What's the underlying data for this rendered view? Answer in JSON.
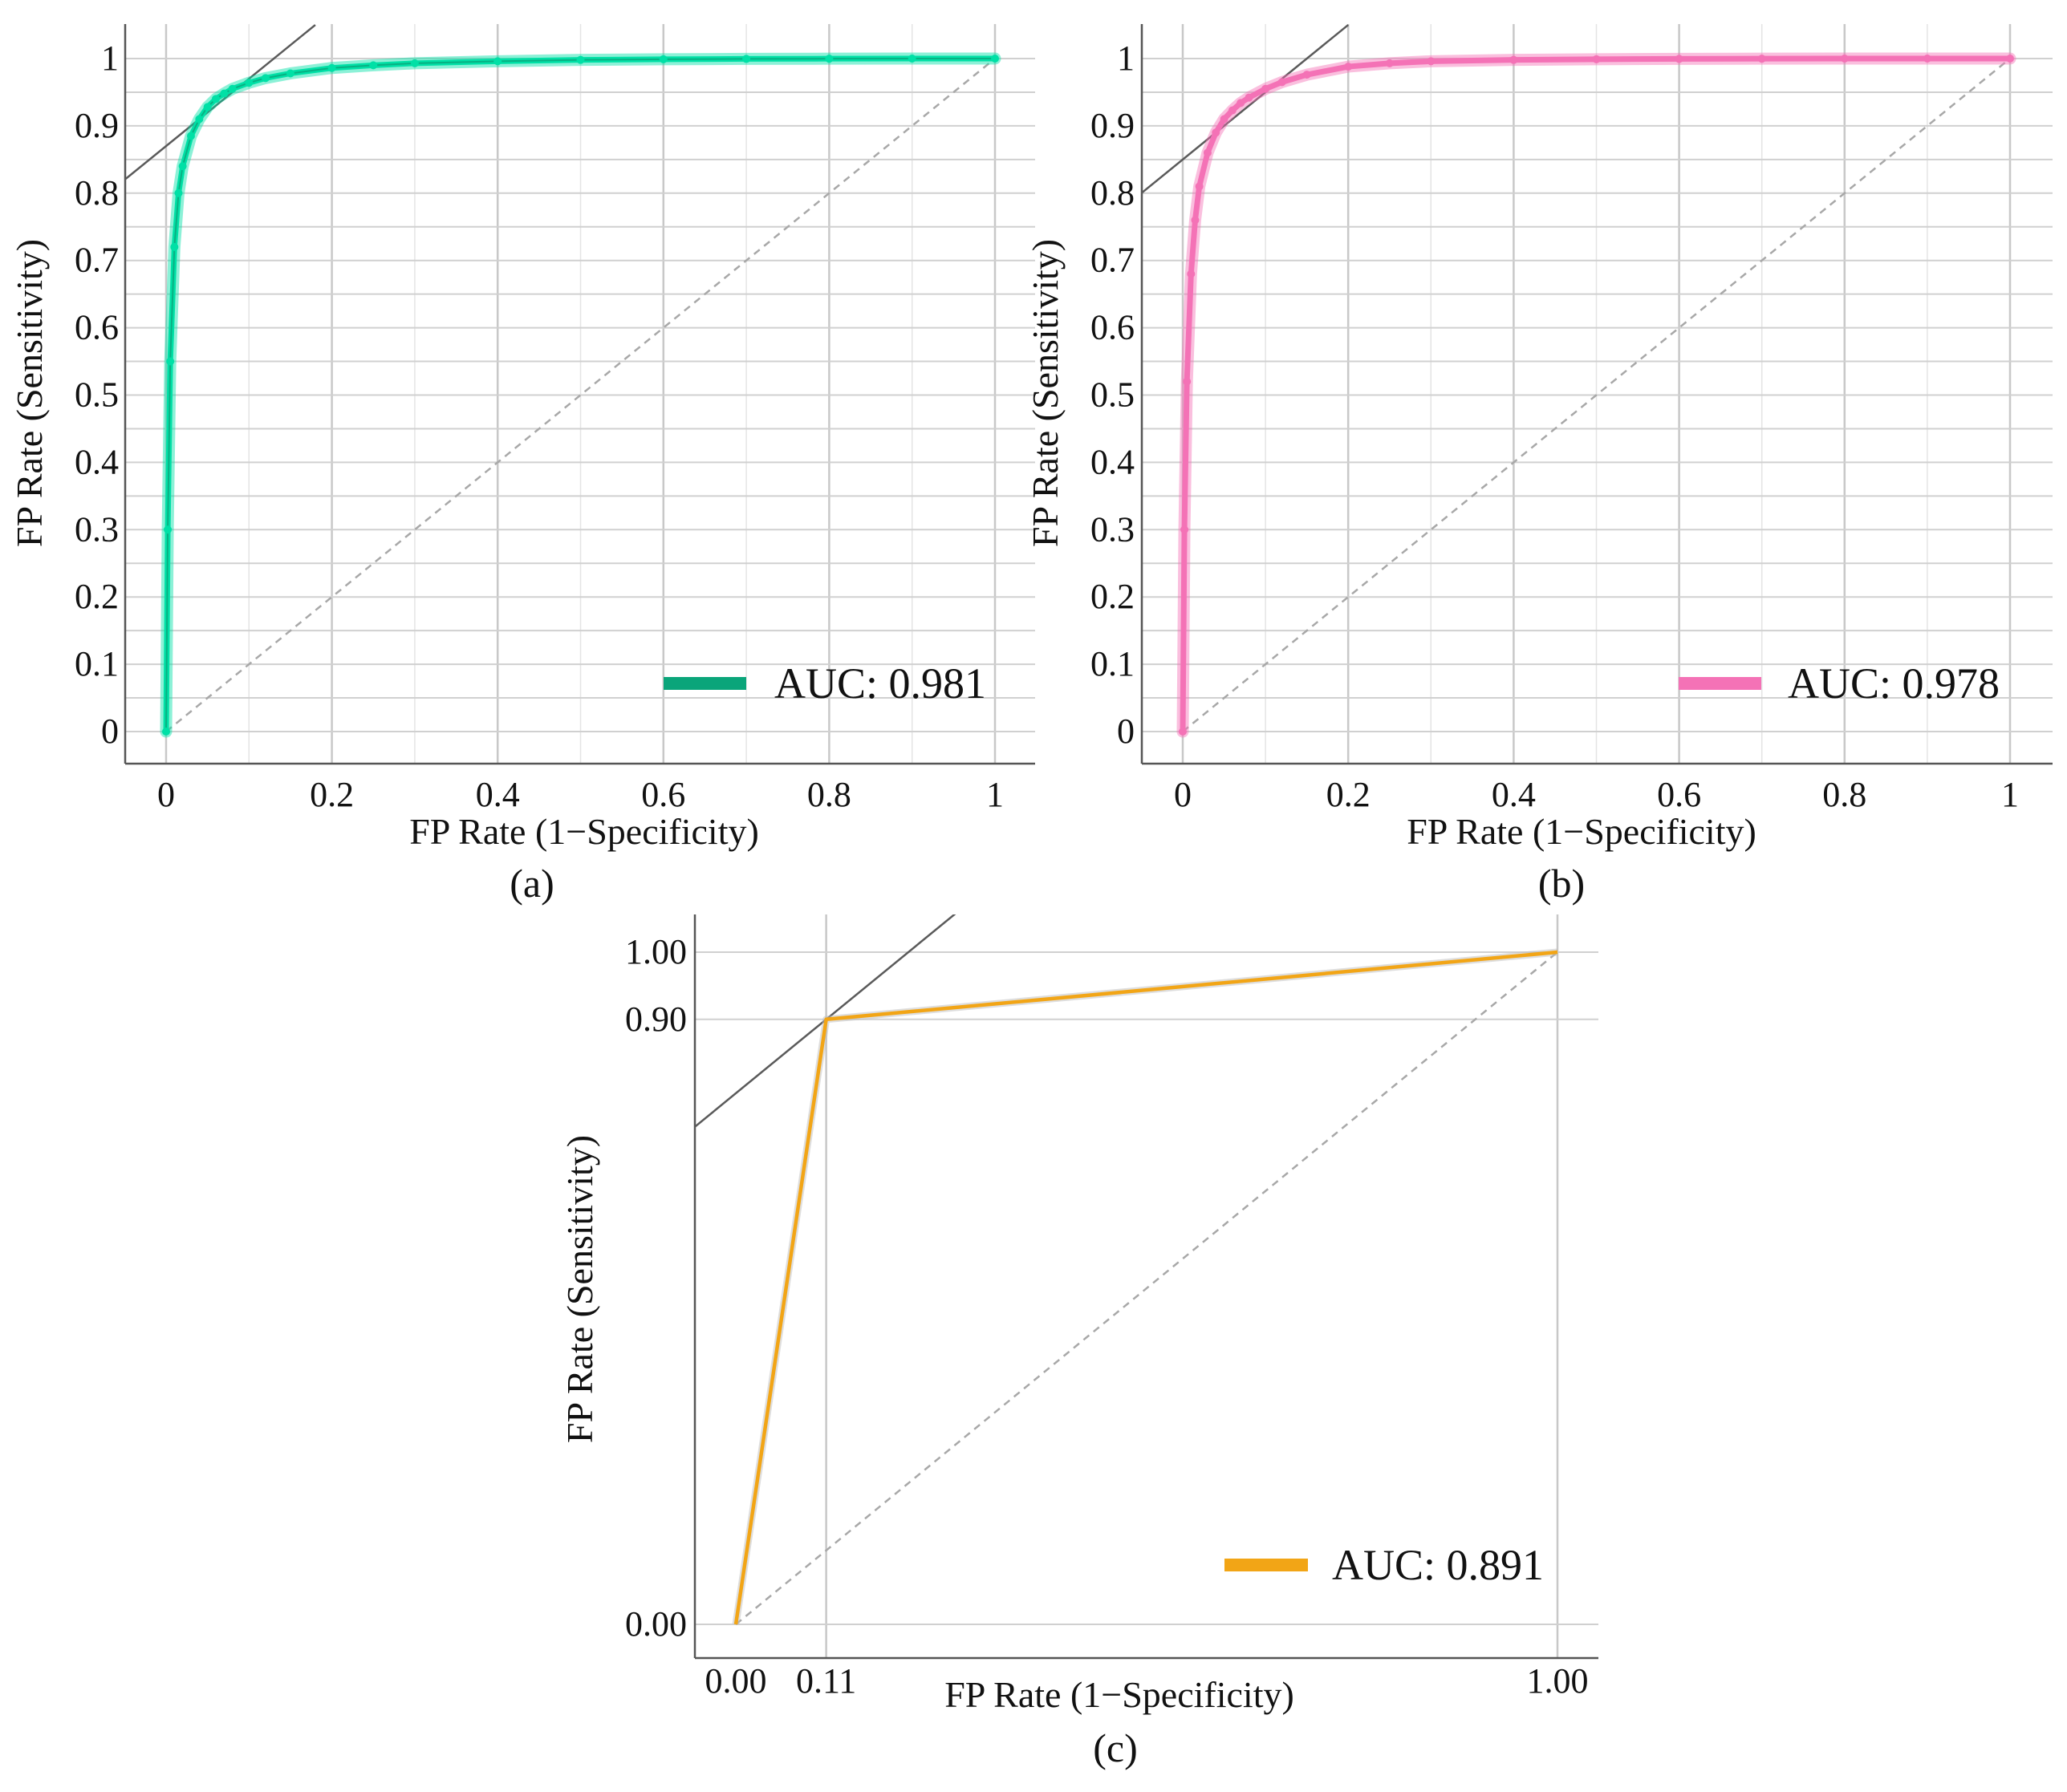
{
  "chart_data": [
    {
      "id": "a",
      "type": "line",
      "panel_label": "(a)",
      "title": "",
      "xlabel": "FP Rate (1−Specificity)",
      "ylabel": "FP Rate (Sensitivity)",
      "xlim": [
        0,
        1
      ],
      "ylim": [
        0,
        1
      ],
      "x_ticks": [
        0,
        0.2,
        0.4,
        0.6,
        0.8,
        1
      ],
      "x_tick_labels": [
        "0",
        "0.2",
        "0.4",
        "0.6",
        "0.8",
        "1"
      ],
      "y_ticks": [
        0,
        0.1,
        0.2,
        0.3,
        0.4,
        0.5,
        0.6,
        0.7,
        0.8,
        0.9,
        1
      ],
      "y_tick_labels": [
        "0",
        "0.1",
        "0.2",
        "0.3",
        "0.4",
        "0.5",
        "0.6",
        "0.7",
        "0.8",
        "0.9",
        "1"
      ],
      "grid": true,
      "legend_position": "bottom-right",
      "series": [
        {
          "name": "AUC: 0.981",
          "color": "#00e0a6",
          "legend_color": "#0aa57a",
          "x": [
            0,
            0.002,
            0.005,
            0.01,
            0.015,
            0.02,
            0.03,
            0.04,
            0.05,
            0.06,
            0.07,
            0.08,
            0.1,
            0.12,
            0.15,
            0.2,
            0.25,
            0.3,
            0.4,
            0.5,
            0.6,
            0.7,
            0.8,
            0.9,
            1
          ],
          "y": [
            0,
            0.3,
            0.55,
            0.72,
            0.8,
            0.84,
            0.885,
            0.91,
            0.928,
            0.94,
            0.948,
            0.955,
            0.964,
            0.971,
            0.978,
            0.986,
            0.99,
            0.993,
            0.996,
            0.998,
            0.999,
            0.9995,
            0.9998,
            1,
            1
          ]
        }
      ],
      "tangent": {
        "x1": -0.05,
        "y1": 0.82,
        "x2": 0.18,
        "y2": 1.05
      },
      "reference_line": {
        "x1": 0,
        "y1": 0,
        "x2": 1,
        "y2": 1
      }
    },
    {
      "id": "b",
      "type": "line",
      "panel_label": "(b)",
      "title": "",
      "xlabel": "FP Rate (1−Specificity)",
      "ylabel": "FP Rate (Sensitivity)",
      "xlim": [
        0,
        1
      ],
      "ylim": [
        0,
        1
      ],
      "x_ticks": [
        0,
        0.2,
        0.4,
        0.6,
        0.8,
        1
      ],
      "x_tick_labels": [
        "0",
        "0.2",
        "0.4",
        "0.6",
        "0.8",
        "1"
      ],
      "y_ticks": [
        0,
        0.1,
        0.2,
        0.3,
        0.4,
        0.5,
        0.6,
        0.7,
        0.8,
        0.9,
        1
      ],
      "y_tick_labels": [
        "0",
        "0.1",
        "0.2",
        "0.3",
        "0.4",
        "0.5",
        "0.6",
        "0.7",
        "0.8",
        "0.9",
        "1"
      ],
      "grid": true,
      "legend_position": "bottom-right",
      "series": [
        {
          "name": "AUC: 0.978",
          "color": "#f472b6",
          "legend_color": "#f472b6",
          "x": [
            0,
            0.002,
            0.005,
            0.01,
            0.015,
            0.02,
            0.03,
            0.04,
            0.05,
            0.06,
            0.07,
            0.08,
            0.1,
            0.12,
            0.15,
            0.2,
            0.25,
            0.3,
            0.4,
            0.5,
            0.6,
            0.7,
            0.8,
            0.9,
            1
          ],
          "y": [
            0,
            0.3,
            0.52,
            0.68,
            0.76,
            0.81,
            0.86,
            0.89,
            0.91,
            0.923,
            0.934,
            0.942,
            0.955,
            0.965,
            0.976,
            0.988,
            0.993,
            0.996,
            0.998,
            0.999,
            0.9995,
            0.9998,
            1,
            1,
            1
          ]
        }
      ],
      "tangent": {
        "x1": -0.05,
        "y1": 0.8,
        "x2": 0.2,
        "y2": 1.05
      },
      "reference_line": {
        "x1": 0,
        "y1": 0,
        "x2": 1,
        "y2": 1
      }
    },
    {
      "id": "c",
      "type": "line",
      "panel_label": "(c)",
      "title": "",
      "xlabel": "FP Rate (1−Specificity)",
      "ylabel": "FP Rate (Sensitivity)",
      "xlim": [
        0,
        1
      ],
      "ylim": [
        0,
        1
      ],
      "x_ticks": [
        0.0,
        0.11,
        1.0
      ],
      "x_tick_labels": [
        "0.00",
        "0.11",
        "1.00"
      ],
      "y_ticks": [
        0.0,
        0.9,
        1.0
      ],
      "y_tick_labels": [
        "0.00",
        "0.90",
        "1.00"
      ],
      "grid": true,
      "legend_position": "bottom-right",
      "series": [
        {
          "name": "AUC: 0.891",
          "color": "#f2a516",
          "legend_color": "#f2a516",
          "x": [
            0,
            0.11,
            1
          ],
          "y": [
            0,
            0.9,
            1
          ]
        }
      ],
      "tangent": {
        "x1": -0.05,
        "y1": 0.74,
        "x2": 0.27,
        "y2": 1.06
      },
      "reference_line": {
        "x1": 0,
        "y1": 0,
        "x2": 1,
        "y2": 1
      }
    }
  ]
}
